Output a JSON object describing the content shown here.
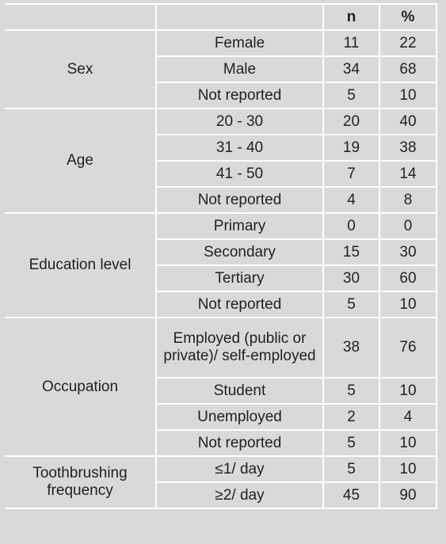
{
  "table": {
    "header": [
      "n",
      "%"
    ],
    "groups": [
      {
        "label": "Sex",
        "rows": [
          [
            "Female",
            11,
            22
          ],
          [
            "Male",
            34,
            68
          ],
          [
            "Not reported",
            5,
            10
          ]
        ]
      },
      {
        "label": "Age",
        "rows": [
          [
            "20 - 30",
            20,
            40
          ],
          [
            "31 - 40",
            19,
            38
          ],
          [
            "41 - 50",
            7,
            14
          ],
          [
            "Not reported",
            4,
            8
          ]
        ]
      },
      {
        "label": "Education level",
        "rows": [
          [
            "Primary",
            0,
            0
          ],
          [
            "Secondary",
            15,
            30
          ],
          [
            "Tertiary",
            30,
            60
          ],
          [
            "Not reported",
            5,
            10
          ]
        ]
      },
      {
        "label": "Occupation",
        "rows": [
          [
            "Employed (public or private)/ self-employed",
            38,
            76
          ],
          [
            "Student",
            5,
            10
          ],
          [
            "Unemployed",
            2,
            4
          ],
          [
            "Not reported",
            5,
            10
          ]
        ]
      },
      {
        "label": "Toothbrushing frequency",
        "rows": [
          [
            "≤1/ day",
            5,
            10
          ],
          [
            "≥2/ day",
            45,
            90
          ]
        ]
      }
    ]
  }
}
